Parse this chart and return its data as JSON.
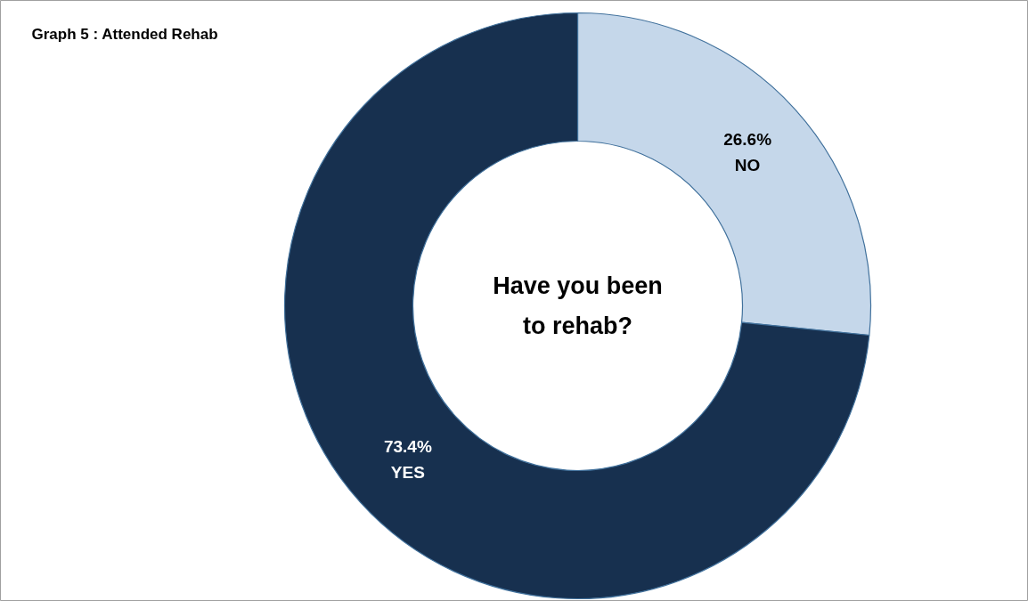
{
  "chart_data": {
    "type": "donut",
    "title": "Graph 5 : Attended Rehab",
    "categories": [
      "NO",
      "YES"
    ],
    "values": [
      26.6,
      73.4
    ],
    "colors": [
      "#c5d7ea",
      "#17304f"
    ],
    "value_labels": [
      "26.6%",
      "73.4%"
    ],
    "annotations": [
      "Have you been\nto rehab?"
    ]
  }
}
